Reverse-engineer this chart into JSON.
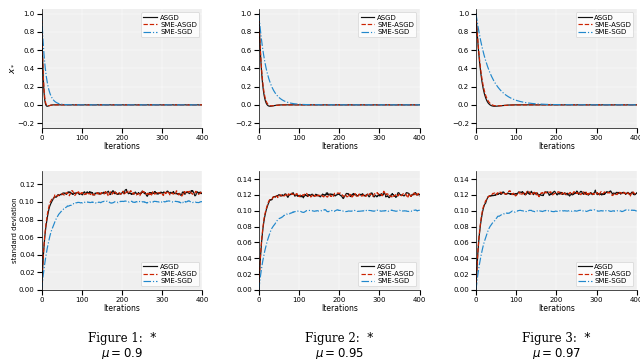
{
  "figures": [
    {
      "label": "Figure 1:  *",
      "mu_label": "$\\mu = 0.9$",
      "mu": 0.9
    },
    {
      "label": "Figure 2:  *",
      "mu_label": "$\\mu = 0.95$",
      "mu": 0.95
    },
    {
      "label": "Figure 3:  *",
      "mu_label": "$\\mu = 0.97$",
      "mu": 0.97
    }
  ],
  "n_iter": 400,
  "colors": {
    "ASGD": "#111111",
    "SME-ASGD": "#cc2200",
    "SME-SGD": "#2288cc"
  },
  "line_styles": {
    "ASGD": "-",
    "SME-ASGD": "--",
    "SME-SGD": "-."
  },
  "top_ylabel": "$x_*$",
  "bottom_ylabel": "standard deviation",
  "xlabel": "Iterations",
  "xticks": [
    0,
    100,
    200,
    300,
    400
  ],
  "seed": 42,
  "bg_color": "#efefef"
}
